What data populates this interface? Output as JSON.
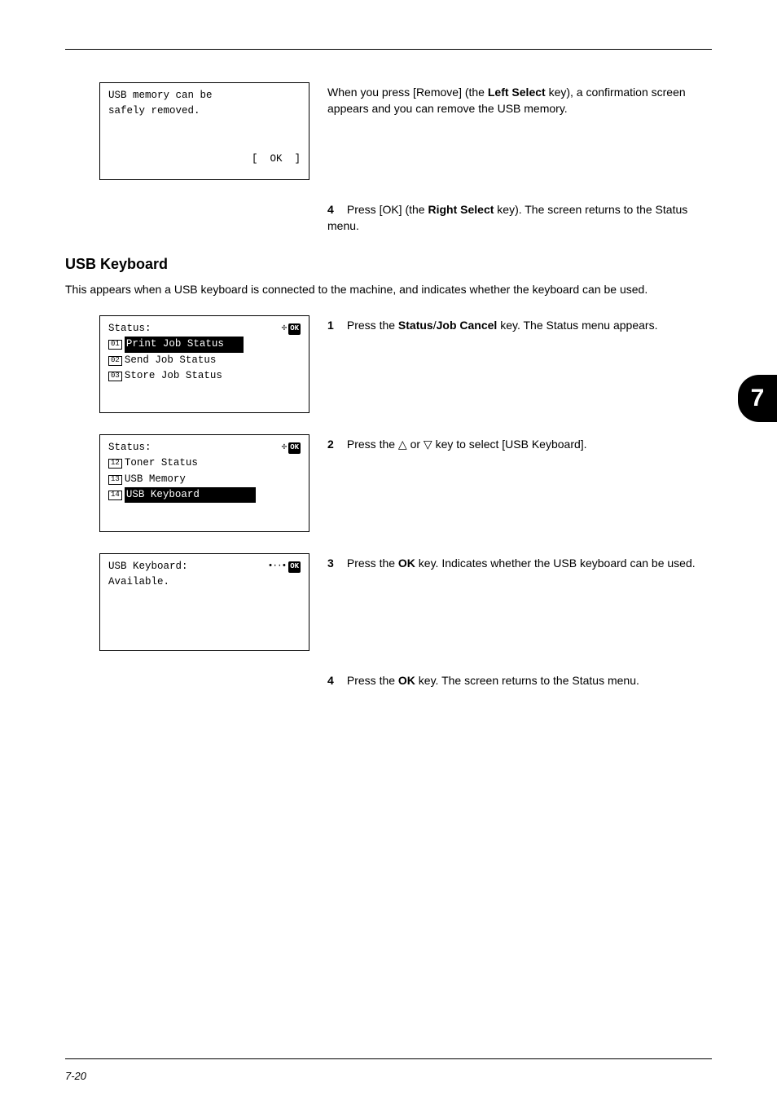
{
  "page": {
    "number_left": "7-20",
    "number_right": "7",
    "side_tab": "7"
  },
  "section1": {
    "lcd1": {
      "l1": "USB memory can be",
      "l2": "safely removed.",
      "soft": "[  OK  ]"
    },
    "para1_a": "When you press [Remove] (the ",
    "para1_b": "Left Select",
    "para1_c": " key), a confirmation screen appears and you can remove the USB memory.",
    "step4": "4",
    "para2_a": "Press [OK] (the ",
    "para2_b": "Right Select",
    "para2_c": " key). The screen returns to the Status menu."
  },
  "heading": "USB Keyboard",
  "intro": "This appears when a USB keyboard is connected to the machine, and indicates whether the keyboard can be used.",
  "section2": {
    "step1": "1",
    "lcd1": {
      "title": "Status:",
      "n1": "01",
      "i1_a": "Print Job Status",
      "i1_b": "",
      "n2": "02",
      "i2": "Send Job Status",
      "n3": "03",
      "i3": "Store Job Status"
    },
    "p1_a": "Press the ",
    "p1_b": "Status",
    "p1_c": "/",
    "p1_d": "Job Cancel",
    "p1_e": " key. The Status menu appears.",
    "step2": "2",
    "lcd2": {
      "title": "Status:",
      "n1": "12",
      "i1": "Toner Status",
      "n2": "13",
      "i2": "USB Memory",
      "n3": "14",
      "i3_a": "USB Keyboard",
      "i3_b": ""
    },
    "p2": "Press the △ or ▽ key to select [USB Keyboard].",
    "step3": "3",
    "lcd3": {
      "title": "USB Keyboard:",
      "l1": "Available."
    },
    "p3_a": "Press the ",
    "p3_b": "OK",
    "p3_c": " key. Indicates whether the USB keyboard can be used.",
    "step4": "4",
    "p4_a": "Press the ",
    "p4_b": "OK",
    "p4_c": " key. The screen returns to the Status menu."
  }
}
